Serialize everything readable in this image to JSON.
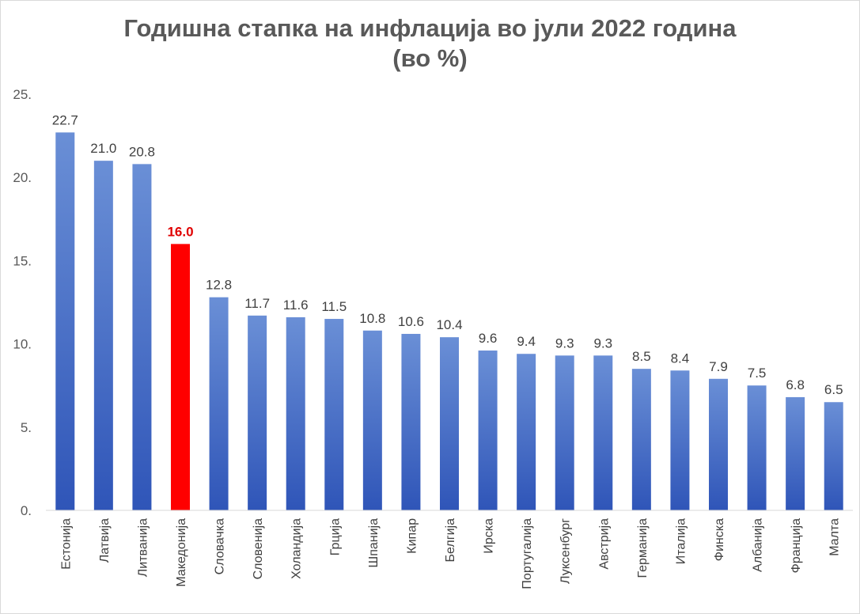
{
  "chart_data": {
    "type": "bar",
    "title": "Годишна стапка на инфлација во јули 2022 година",
    "subtitle": "(во %)",
    "categories": [
      "Естонија",
      "Латвија",
      "Литванија",
      "Македонија",
      "Словачка",
      "Словенија",
      "Холандија",
      "Грција",
      "Шпанија",
      "Кипар",
      "Белгија",
      "Ирска",
      "Португалија",
      "Луксенбург",
      "Австрија",
      "Германија",
      "Италија",
      "Финска",
      "Албанија",
      "Франција",
      "Малта"
    ],
    "values": [
      22.7,
      21.0,
      20.8,
      16.0,
      12.8,
      11.7,
      11.6,
      11.5,
      10.8,
      10.6,
      10.4,
      9.6,
      9.4,
      9.3,
      9.3,
      8.5,
      8.4,
      7.9,
      7.5,
      6.8,
      6.5
    ],
    "data_labels": [
      "22.7",
      "21.0",
      "20.8",
      "16.0",
      "12.8",
      "11.7",
      "11.6",
      "11.5",
      "10.8",
      "10.6",
      "10.4",
      "9.6",
      "9.4",
      "9.3",
      "9.3",
      "8.5",
      "8.4",
      "7.9",
      "7.5",
      "6.8",
      "6.5"
    ],
    "highlight_index": 3,
    "yticks": [
      0,
      5,
      10,
      15,
      20,
      25
    ],
    "ytick_labels": [
      "0.",
      "5.",
      "10.",
      "15.",
      "20.",
      "25."
    ],
    "ylim": [
      0,
      25
    ],
    "xlabel": "",
    "ylabel": "",
    "grid": false,
    "legend": "none",
    "colors": {
      "bar_top": "#6a8fd6",
      "bar_bottom": "#2f55b8",
      "highlight": "#ff0000",
      "highlight_label": "#e00000"
    }
  }
}
